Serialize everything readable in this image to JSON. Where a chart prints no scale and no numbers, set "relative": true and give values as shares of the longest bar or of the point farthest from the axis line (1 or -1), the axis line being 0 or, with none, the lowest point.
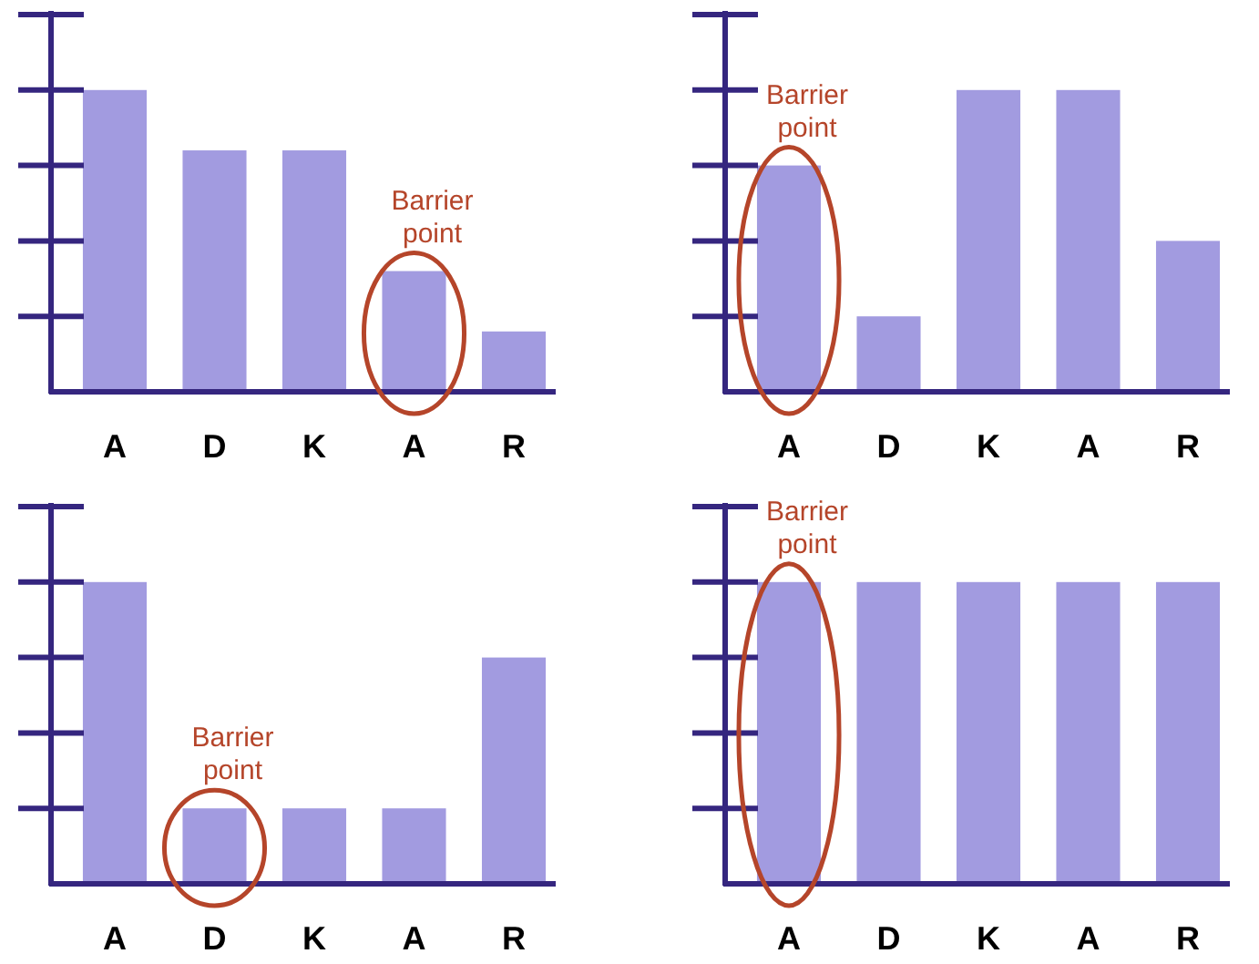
{
  "chart_data": [
    {
      "type": "bar",
      "relative": true,
      "categories": [
        "A",
        "D",
        "K",
        "A",
        "R"
      ],
      "values": [
        1,
        0.8,
        0.8,
        0.4,
        0.2
      ],
      "color": "#a29be0",
      "annotations": [
        {
          "text": "Barrier point",
          "y": 0.4
        }
      ]
    },
    {
      "type": "bar",
      "relative": true,
      "categories": [
        "A",
        "D",
        "K",
        "A",
        "R"
      ],
      "values": [
        0.75,
        0.25,
        1,
        1,
        0.5
      ],
      "color": "#a29be0",
      "annotations": [
        {
          "text": "Barrier point",
          "x": "A",
          "y": 0.75
        }
      ]
    },
    {
      "type": "bar",
      "relative": true,
      "categories": [
        "A",
        "D",
        "K",
        "A",
        "R"
      ],
      "values": [
        1,
        0.25,
        0.25,
        0.25,
        0.75
      ],
      "color": "#a29be0",
      "annotations": [
        {
          "text": "Barrier point",
          "x": "D",
          "y": 0.25
        }
      ]
    },
    {
      "type": "bar",
      "relative": true,
      "categories": [
        "A",
        "D",
        "K",
        "A",
        "R"
      ],
      "values": [
        1,
        1,
        1,
        1,
        1
      ],
      "color": "#a29be0",
      "annotations": [
        {
          "text": "Barrier point",
          "x": "A",
          "y": 1
        }
      ]
    }
  ]
}
